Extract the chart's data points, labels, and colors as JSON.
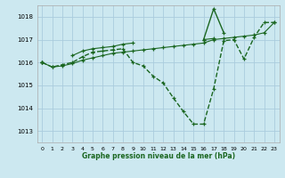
{
  "title": "Graphe pression niveau de la mer (hPa)",
  "bg_color": "#cce8f0",
  "grid_color": "#aaccdd",
  "line_color": "#1a6620",
  "xlim": [
    -0.5,
    23.5
  ],
  "ylim": [
    1012.5,
    1018.5
  ],
  "yticks": [
    1013,
    1014,
    1015,
    1016,
    1017,
    1018
  ],
  "xticks": [
    0,
    1,
    2,
    3,
    4,
    5,
    6,
    7,
    8,
    9,
    10,
    11,
    12,
    13,
    14,
    15,
    16,
    17,
    18,
    19,
    20,
    21,
    22,
    23
  ],
  "series": [
    {
      "y": [
        1016.0,
        1015.8,
        1015.9,
        1016.0,
        1016.25,
        1016.45,
        1016.5,
        1016.55,
        1016.6,
        1016.0,
        1015.85,
        1015.4,
        1015.1,
        1014.45,
        1013.85,
        1013.3,
        1013.3,
        1014.85,
        1016.95,
        1017.0,
        1016.15,
        1017.1,
        1017.75,
        1017.75
      ],
      "style": "--",
      "lw": 1.0
    },
    {
      "y": [
        1016.0,
        1015.8,
        1015.85,
        1015.95,
        1016.1,
        1016.2,
        1016.3,
        1016.4,
        1016.45,
        1016.5,
        1016.55,
        1016.6,
        1016.65,
        1016.7,
        1016.75,
        1016.8,
        1016.85,
        1017.0,
        1017.05,
        1017.1,
        1017.15,
        1017.2,
        1017.3,
        1017.75
      ],
      "style": "-",
      "lw": 0.8
    },
    {
      "y": [
        1016.0,
        null,
        null,
        null,
        null,
        null,
        null,
        null,
        null,
        null,
        null,
        null,
        null,
        null,
        null,
        null,
        1017.0,
        1018.35,
        1017.3,
        null,
        null,
        null,
        null,
        null
      ],
      "style": "-",
      "lw": 1.0
    },
    {
      "y": [
        1016.0,
        null,
        null,
        1016.3,
        1016.5,
        1016.6,
        1016.65,
        1016.7,
        1016.8,
        1016.85,
        null,
        null,
        null,
        null,
        null,
        null,
        1017.0,
        1017.05,
        null,
        null,
        null,
        null,
        null,
        null
      ],
      "style": "-",
      "lw": 0.8
    }
  ]
}
